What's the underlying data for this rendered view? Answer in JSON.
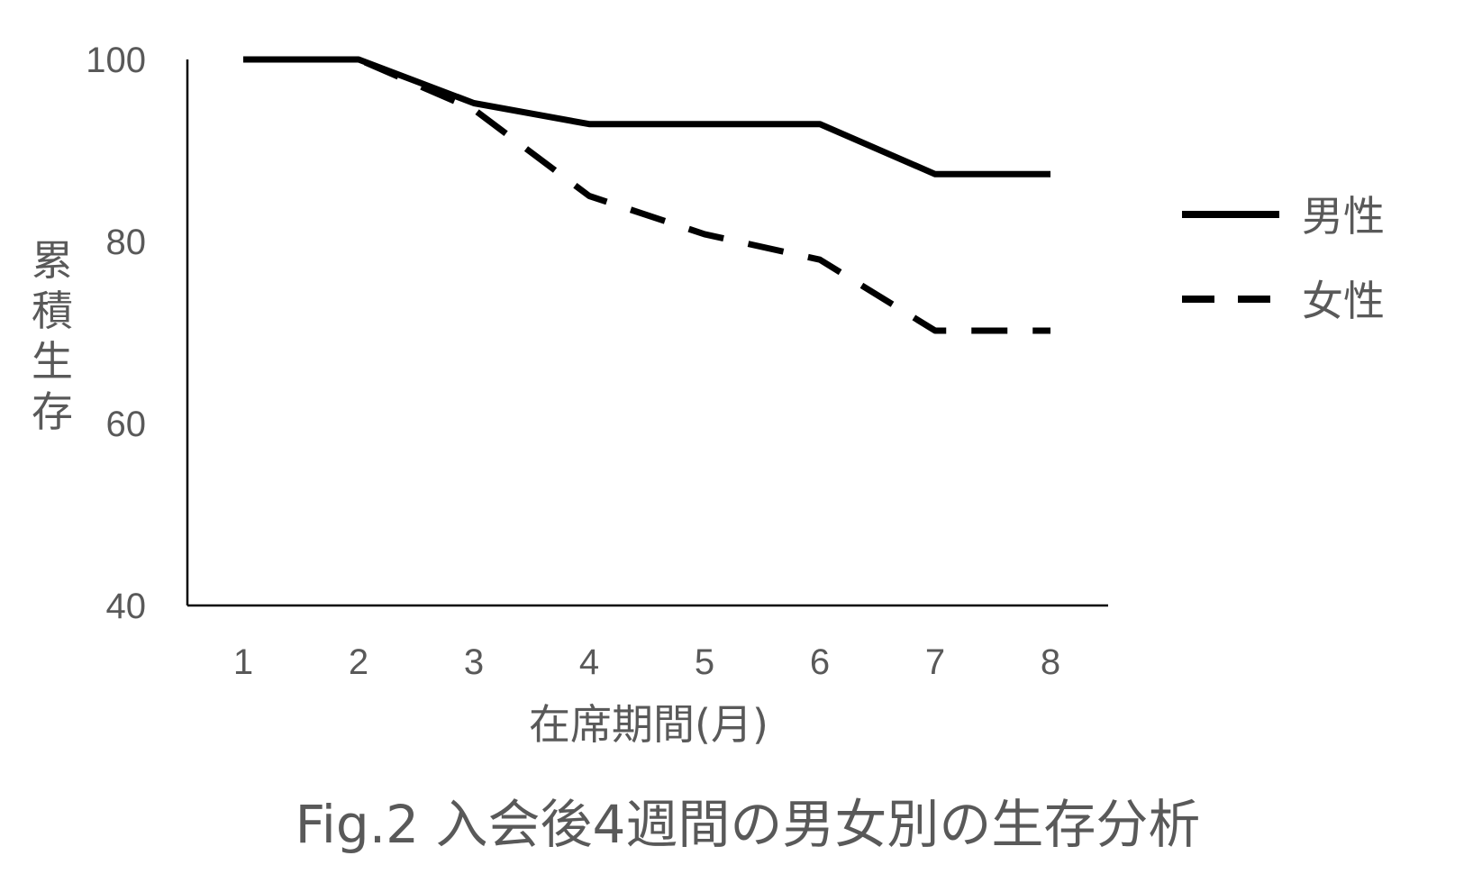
{
  "chart_data": {
    "type": "line",
    "title": "Fig.2 入会後4週間の男女別の生存分析",
    "xlabel": "在席期間(月)",
    "ylabel": "累積生存",
    "categories": [
      "1",
      "2",
      "3",
      "4",
      "5",
      "6",
      "7",
      "8"
    ],
    "ylim": [
      40,
      100
    ],
    "yticks": [
      40,
      60,
      80,
      100
    ],
    "grid": false,
    "legend_position": "right",
    "series": [
      {
        "name": "男性",
        "style": "solid",
        "color": "#000000",
        "values": [
          100,
          100,
          95.2,
          92.9,
          92.9,
          92.9,
          87.4,
          87.4
        ]
      },
      {
        "name": "女性",
        "style": "dashed",
        "color": "#000000",
        "values": [
          100,
          100,
          94.5,
          85.0,
          80.8,
          78.0,
          70.2,
          70.2
        ]
      }
    ]
  }
}
